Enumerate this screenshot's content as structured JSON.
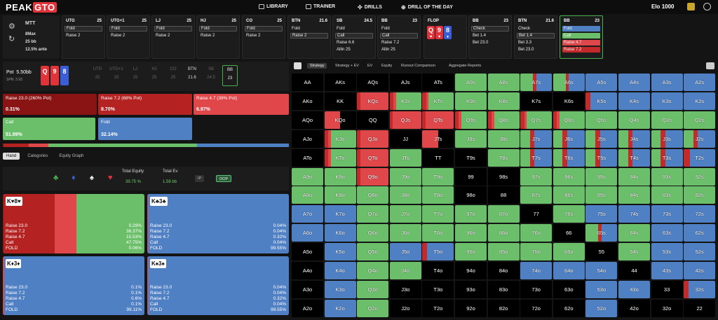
{
  "brand": {
    "left": "PEAK",
    "right": "GTO"
  },
  "nav": [
    "LIBRARY",
    "TRAINER",
    "DRILLS",
    "DRILL OF THE DAY"
  ],
  "elo": {
    "label": "Elo",
    "value": "1000"
  },
  "game": {
    "type": "MTT",
    "format": "8Max",
    "stack": "25 bb",
    "ante": "12.5% ante"
  },
  "strip": [
    {
      "pos": "UTG",
      "stack": "25",
      "actions": [
        {
          "t": "Fold",
          "sel": true
        },
        {
          "t": "Raise 2",
          "sel": false
        }
      ]
    },
    {
      "pos": "UTG+1",
      "stack": "25",
      "actions": [
        {
          "t": "Fold",
          "sel": true
        },
        {
          "t": "Raise 2",
          "sel": false
        }
      ]
    },
    {
      "pos": "LJ",
      "stack": "25",
      "actions": [
        {
          "t": "Fold",
          "sel": true
        },
        {
          "t": "Raise 2",
          "sel": false
        }
      ]
    },
    {
      "pos": "HJ",
      "stack": "25",
      "actions": [
        {
          "t": "Fold",
          "sel": true
        },
        {
          "t": "Raise 2",
          "sel": false
        }
      ]
    },
    {
      "pos": "CO",
      "stack": "25",
      "actions": [
        {
          "t": "Fold",
          "sel": true
        },
        {
          "t": "Raise 2",
          "sel": false
        }
      ]
    },
    {
      "pos": "BTN",
      "stack": "21.6",
      "actions": [
        {
          "t": "Fold",
          "sel": false
        },
        {
          "t": "Raise 2",
          "sel": true
        }
      ]
    },
    {
      "pos": "SB",
      "stack": "24.5",
      "actions": [
        {
          "t": "Fold",
          "sel": false
        },
        {
          "t": "Call",
          "sel": true
        },
        {
          "t": "Raise 6.6",
          "sel": false
        },
        {
          "t": "Allin 25",
          "sel": false
        }
      ]
    },
    {
      "pos": "BB",
      "stack": "23",
      "actions": [
        {
          "t": "Fold",
          "sel": false
        },
        {
          "t": "Call",
          "sel": true
        },
        {
          "t": "Raise 7.2",
          "sel": false
        },
        {
          "t": "Allin 25",
          "sel": false
        }
      ]
    },
    {
      "pos": "FLOP",
      "stack": "",
      "actions": []
    },
    {
      "pos": "BB",
      "stack": "23",
      "actions": [
        {
          "t": "Check",
          "sel": true
        },
        {
          "t": "Bet 1.4",
          "sel": false
        },
        {
          "t": "Bet 23.0",
          "sel": false
        }
      ]
    },
    {
      "pos": "BTN",
      "stack": "21.6",
      "actions": [
        {
          "t": "Check",
          "sel": false
        },
        {
          "t": "Bet 1.4",
          "sel": true
        },
        {
          "t": "Bet 3.3",
          "sel": false
        },
        {
          "t": "Bet 23.0",
          "sel": false
        }
      ]
    },
    {
      "pos": "BB",
      "stack": "23",
      "actions": [
        {
          "t": "Fold",
          "sel": false
        },
        {
          "t": "Call",
          "sel": false
        },
        {
          "t": "Raise 4.7",
          "sel": false
        },
        {
          "t": "Raise 7.2",
          "sel": false
        }
      ]
    }
  ],
  "flop": [
    {
      "r": "Q",
      "c": "#e0343a"
    },
    {
      "r": "9",
      "c": "#e0343a"
    },
    {
      "r": "8",
      "c": "#3a5ed6"
    }
  ],
  "pot": {
    "label": "Pot",
    "value": "5.50bb",
    "spr": "SPR: 3.93"
  },
  "seats": [
    {
      "n": "UTG",
      "s": "25"
    },
    {
      "n": "UTG+1",
      "s": "25"
    },
    {
      "n": "LJ",
      "s": "25"
    },
    {
      "n": "HJ",
      "s": "25"
    },
    {
      "n": "CO",
      "s": "25"
    },
    {
      "n": "BTN",
      "s": "21.6"
    },
    {
      "n": "SB",
      "s": "24.5"
    },
    {
      "n": "BB",
      "s": "23"
    }
  ],
  "actions": [
    {
      "label": "Raise 23.0 (260% Pot)",
      "pct": "0.31%",
      "color": "#8a1414"
    },
    {
      "label": "Raise 7.2 (68% Pot)",
      "pct": "8.70%",
      "color": "#b52222"
    },
    {
      "label": "Raise 4.7 (39% Pot)",
      "pct": "6.97%",
      "color": "#e0474a"
    },
    {
      "label": "Call",
      "pct": "51.89%",
      "color": "#6cbf6a"
    },
    {
      "label": "Fold",
      "pct": "32.14%",
      "color": "#4f80c4"
    }
  ],
  "freq": [
    0.31,
    8.7,
    6.97,
    51.89,
    32.14
  ],
  "tabs": [
    "Hand",
    "Categories",
    "Equity Graph"
  ],
  "equity": {
    "te_label": "Total Equity",
    "te": "39.75 %",
    "ev_label": "Total Ev",
    "ev": "1.58 bb",
    "ip": "IP",
    "oop": "OOP"
  },
  "suits": [
    {
      "s": "♣",
      "c": "#4caf50"
    },
    {
      "s": "♦",
      "c": "#3a5ed6"
    },
    {
      "s": "♠",
      "c": "#ffffff"
    },
    {
      "s": "♥",
      "c": "#e0343a"
    }
  ],
  "combos": [
    {
      "h1": "K♥",
      "h2": "8♥",
      "rows": [
        [
          "Raise 23.0",
          "0.29%"
        ],
        [
          "Raise 7.2",
          "36.37%"
        ],
        [
          "Raise 4.7",
          "15.53%"
        ],
        [
          "Call",
          "47.75%"
        ],
        [
          "FOLD",
          "0.06%"
        ]
      ],
      "f": [
        0.29,
        36.37,
        15.53,
        47.75,
        0.06
      ]
    },
    {
      "h1": "K♣",
      "h2": "3♣",
      "rows": [
        [
          "Raise 23.0",
          "0.04%"
        ],
        [
          "Raise 7.2",
          "0.04%"
        ],
        [
          "Raise 4.7",
          "0.32%"
        ],
        [
          "Call",
          "0.04%"
        ],
        [
          "FOLD",
          "99.55%"
        ]
      ],
      "f": [
        0.04,
        0.04,
        0.32,
        0.04,
        99.55
      ]
    },
    {
      "h1": "K♦",
      "h2": "3♦",
      "rows": [
        [
          "Raise 23.0",
          "0.1%"
        ],
        [
          "Raise 7.2",
          "0.1%"
        ],
        [
          "Raise 4.7",
          "0.6%"
        ],
        [
          "Call",
          "0.1%"
        ],
        [
          "FOLD",
          "99.11%"
        ]
      ],
      "f": [
        0.1,
        0.1,
        0.6,
        0.1,
        99.11
      ]
    },
    {
      "h1": "K♠",
      "h2": "3♠",
      "rows": [
        [
          "Raise 23.0",
          "0.04%"
        ],
        [
          "Raise 7.2",
          "0.04%"
        ],
        [
          "Raise 4.7",
          "0.32%"
        ],
        [
          "Call",
          "0.04%"
        ],
        [
          "FOLD",
          "99.55%"
        ]
      ],
      "f": [
        0.04,
        0.04,
        0.32,
        0.04,
        99.55
      ]
    }
  ],
  "rtabs": [
    "Strategy",
    "Strategy + EV",
    "EV",
    "Equity",
    "Runout Comparison",
    "Aggregate Reports"
  ],
  "colors": {
    "raise_big": "#8a1414",
    "raise_mid": "#c42a2a",
    "raise_small": "#e0474a",
    "call": "#6cbf6a",
    "fold": "#4f80c4",
    "none": "#000000"
  },
  "grid": [
    [
      "AA:x",
      "AKs:x",
      "AQs:x",
      "AJs:x",
      "ATs:x",
      "A9s:c",
      "A8s:c",
      "A7s:Lc",
      "A6s:Lc",
      "A5s:f",
      "A4s:f",
      "A3s:f",
      "A2s:f"
    ],
    [
      "AKo:x",
      "KK:x",
      "KQs:r",
      "KJs:Rc",
      "KTs:Rc",
      "K9s:c",
      "K8s:c",
      "K7s:x",
      "K6s:x",
      "K5s:Lf",
      "K4s:f",
      "K3s:f",
      "K2s:f"
    ],
    [
      "AQo:x",
      "KQo:Rh",
      "QQ:x",
      "QJs:r",
      "QTs:r",
      "Q9s:Rc",
      "Q8s:Rc",
      "Q7s:Rc",
      "Q6s:Rc",
      "Q5s:c",
      "Q4s:c",
      "Q3s:c",
      "Q2s:c"
    ],
    [
      "AJo:x",
      "KJo:Rc",
      "QJo:r",
      "JJ:x",
      "JTs:Rh",
      "J9s:c",
      "J8s:c",
      "J7s:Mc",
      "J6s:Mc",
      "J5s:Mc",
      "J4s:Mc",
      "J3s:Mc",
      "J2s:Mc"
    ],
    [
      "ATo:x",
      "KTo:Rc",
      "QTo:r",
      "JTo:c",
      "TT:x",
      "T9s:x",
      "T8s:c",
      "T7s:Mc",
      "T6s:Mc",
      "T5s:Mc",
      "T4s:Mc",
      "T3s:Mc",
      "T2s:Mf"
    ],
    [
      "A9o:c",
      "K9o:c",
      "Q9o:r",
      "J9o:c",
      "T9o:c",
      "99:x",
      "98s:x",
      "97s:c",
      "96s:c",
      "95s:c",
      "94s:c",
      "93s:c",
      "92s:c"
    ],
    [
      "A8o:c",
      "K8o:c",
      "Q8o:c",
      "J8o:c",
      "T8o:c",
      "98o:x",
      "88:x",
      "87s:c",
      "86s:c",
      "85s:c",
      "84s:c",
      "83s:c",
      "82s:c"
    ],
    [
      "A7o:f",
      "K7o:f",
      "Q7o:c",
      "J7o:c",
      "T7o:c",
      "97o:c",
      "87o:c",
      "77:x",
      "76s:c",
      "75s:f",
      "74s:f",
      "73s:f",
      "72s:f"
    ],
    [
      "A6o:f",
      "K6o:f",
      "Q6o:c",
      "J6o:c",
      "T6o:c",
      "96o:c",
      "86o:c",
      "76o:c",
      "66:x",
      "65s:Lc",
      "64s:c",
      "63s:f",
      "62s:f"
    ],
    [
      "A5o:x",
      "K5o:f",
      "Q5o:c",
      "J5o:f",
      "T5o:Rf",
      "95o:c",
      "85o:c",
      "75o:c",
      "65o:c",
      "55:x",
      "54s:c",
      "53s:f",
      "52s:f"
    ],
    [
      "A4o:x",
      "K4o:f",
      "Q4o:c",
      "J4o:c",
      "T4o:x",
      "94o:x",
      "84o:x",
      "74o:f",
      "64o:f",
      "54o:f",
      "44:x",
      "43s:f",
      "42s:f"
    ],
    [
      "A3o:x",
      "K3o:f",
      "Q3o:c",
      "J3o:x",
      "T3o:x",
      "93o:x",
      "83o:x",
      "73o:x",
      "63o:x",
      "53o:f",
      "43o:f",
      "33:x",
      "32s:Lf"
    ],
    [
      "A2o:x",
      "K2o:f",
      "Q2o:c",
      "J2o:x",
      "T2o:x",
      "92o:x",
      "82o:x",
      "72o:x",
      "62o:x",
      "52o:f",
      "42o:x",
      "32o:x",
      "22:x"
    ]
  ]
}
